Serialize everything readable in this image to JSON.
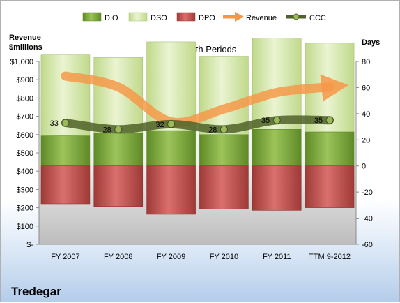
{
  "company": "Tredegar",
  "chart_data": {
    "type": "bar",
    "title": "12-Month Periods",
    "categories": [
      "FY 2007",
      "FY 2008",
      "FY 2009",
      "FY 2010",
      "FY 2011",
      "TTM 9-2012"
    ],
    "left_axis": {
      "label_line1": "Revenue",
      "label_line2": "$millions",
      "range": [
        0,
        1000
      ],
      "ticks": [
        0,
        100,
        200,
        300,
        400,
        500,
        600,
        700,
        800,
        900,
        1000
      ],
      "tick_labels": [
        "$-",
        "$100",
        "$200",
        "$300",
        "$400",
        "$500",
        "$600",
        "$700",
        "$800",
        "$900",
        "$1,000"
      ]
    },
    "right_axis": {
      "label": "Days",
      "range": [
        -60,
        80
      ],
      "ticks": [
        -60,
        -40,
        -20,
        0,
        20,
        40,
        60,
        80
      ],
      "tick_labels": [
        "-60",
        "-40",
        "-20",
        "0",
        "20",
        "40",
        "60",
        "80"
      ]
    },
    "legend_position": "top",
    "series": [
      {
        "name": "DIO",
        "kind": "stacked-bar",
        "axis": "right",
        "color": "#7aa33a",
        "values": [
          23,
          25,
          27,
          24,
          28,
          26
        ]
      },
      {
        "name": "DSO",
        "kind": "stacked-bar",
        "axis": "right",
        "color": "#d4e6a6",
        "values": [
          62,
          58,
          68,
          60,
          70,
          68
        ]
      },
      {
        "name": "DPO",
        "kind": "negative-bar",
        "axis": "right",
        "color": "#c0504d",
        "values": [
          -29,
          -31,
          -37,
          -33,
          -34,
          -32
        ]
      },
      {
        "name": "Revenue",
        "kind": "line",
        "axis": "left",
        "color": "#f79646",
        "values": [
          920,
          860,
          670,
          740,
          830,
          860
        ]
      },
      {
        "name": "CCC",
        "kind": "line",
        "axis": "right",
        "color": "#4f6228",
        "values": [
          33,
          28,
          32,
          28,
          35,
          35
        ],
        "labels": [
          "33",
          "28",
          "32",
          "28",
          "35",
          "35"
        ]
      }
    ]
  }
}
